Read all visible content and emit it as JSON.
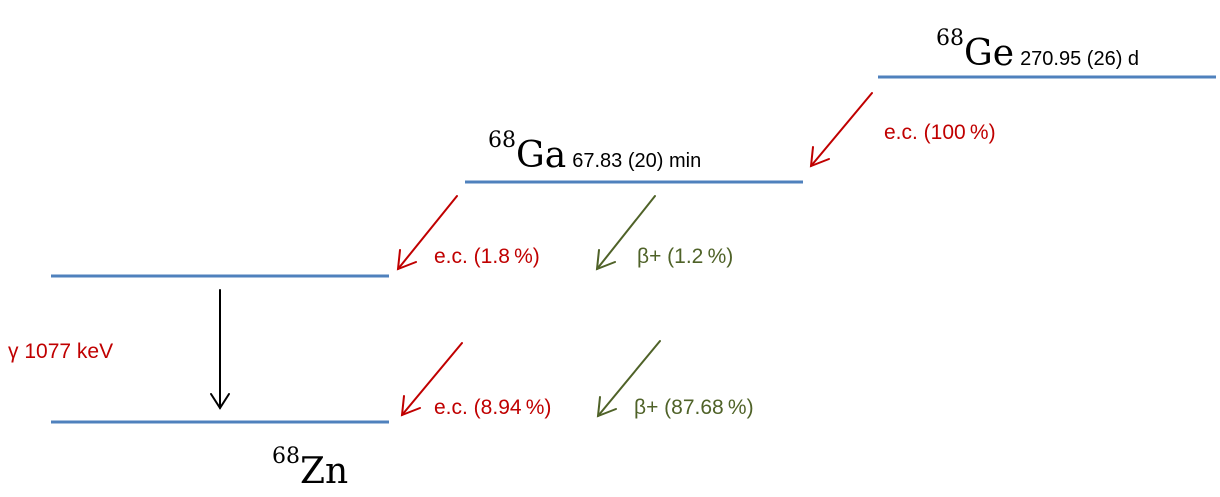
{
  "nuclides": {
    "ge": {
      "mass": "68",
      "symbol": "Ge",
      "half_life": "270.95 (26) d"
    },
    "ga": {
      "mass": "68",
      "symbol": "Ga",
      "half_life": "67.83 (20) min"
    },
    "zn": {
      "mass": "68",
      "symbol": "Zn"
    }
  },
  "decays": {
    "ge_to_ga_ec": "e.c. (100 %)",
    "ga_to_zn_excited_ec": "e.c. (1.8 %)",
    "ga_to_zn_excited_beta": "β+ (1.2 %)",
    "ga_to_zn_ground_ec": "e.c. (8.94 %)",
    "ga_to_zn_ground_beta": "β+ (87.68 %)",
    "gamma": "γ 1077 keV"
  },
  "colors": {
    "level_line": "#4f81bd",
    "ec": "#c00000",
    "beta_plus": "#4f6228",
    "gamma_arrow": "#000000"
  }
}
